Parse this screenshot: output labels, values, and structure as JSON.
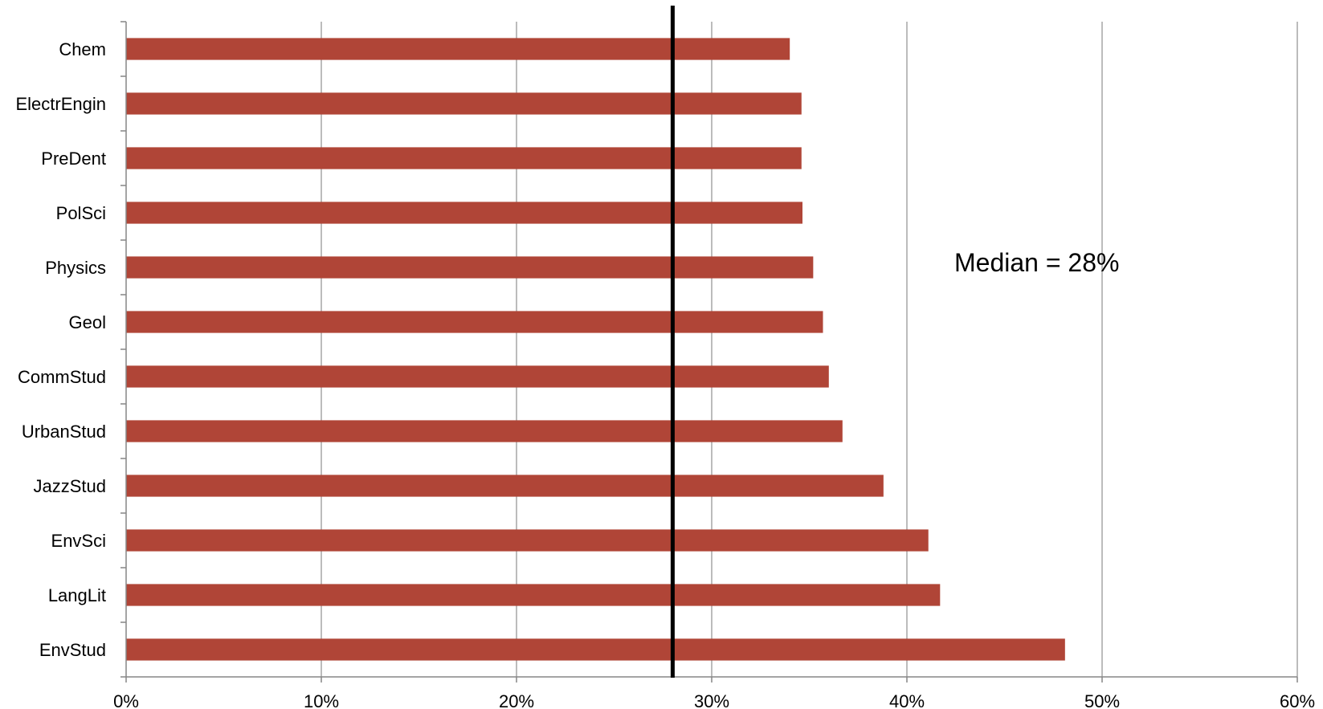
{
  "chart_data": {
    "type": "bar",
    "orientation": "horizontal",
    "categories": [
      "Chem",
      "ElectrEngin",
      "PreDent",
      "PolSci",
      "Physics",
      "Geol",
      "CommStud",
      "UrbanStud",
      "JazzStud",
      "EnvSci",
      "LangLit",
      "EnvStud"
    ],
    "values": [
      0.34,
      0.346,
      0.346,
      0.3465,
      0.352,
      0.357,
      0.36,
      0.367,
      0.388,
      0.411,
      0.417,
      0.481
    ],
    "xlim": [
      0,
      0.6
    ],
    "x_ticks": [
      0,
      0.1,
      0.2,
      0.3,
      0.4,
      0.5,
      0.6
    ],
    "x_tick_labels": [
      "0%",
      "10%",
      "20%",
      "30%",
      "40%",
      "50%",
      "60%"
    ],
    "reference_line": {
      "value": 0.28,
      "color": "#000000"
    },
    "annotation": "Median = 28%",
    "bar_color": "#B04537",
    "grid": "vertical",
    "grid_color": "#A6A6A6",
    "legend": "none",
    "title": "",
    "xlabel": "",
    "ylabel": ""
  }
}
